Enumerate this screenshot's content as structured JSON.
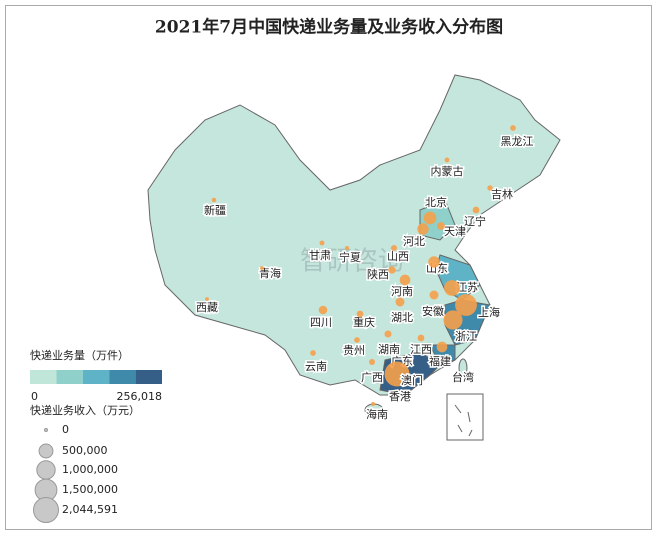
{
  "title": "2021年7月中国快递业务量及业务收入分布图",
  "watermark": "智研咨询",
  "legend": {
    "volume_title": "快递业务量（万件）",
    "volume_range": [
      0,
      {
        "value": 256018,
        "label": "256,018"
      }
    ],
    "volume_colors": [
      "#bfe6d8",
      "#8fd0cb",
      "#5fb3c6",
      "#3f89aa",
      "#355f86"
    ],
    "revenue_title": "快递业务收入（万元）",
    "revenue_sizes": [
      0,
      {
        "value": 500000,
        "label": "500,000"
      },
      {
        "value": 1000000,
        "label": "1,000,000"
      },
      {
        "value": 1500000,
        "label": "1,500,000"
      },
      {
        "value": 2044591,
        "label": "2,044,591"
      }
    ]
  },
  "bubble_color": "#f5a04a",
  "regions": [
    {
      "name": "黑龙江",
      "revenue": 30000
    },
    {
      "name": "吉林",
      "revenue": 25000
    },
    {
      "name": "辽宁",
      "revenue": 60000
    },
    {
      "name": "内蒙古",
      "revenue": 15000
    },
    {
      "name": "北京",
      "revenue": 400000
    },
    {
      "name": "天津",
      "revenue": 100000
    },
    {
      "name": "河北",
      "revenue": 300000
    },
    {
      "name": "山西",
      "revenue": 40000
    },
    {
      "name": "山东",
      "revenue": 300000
    },
    {
      "name": "新疆",
      "revenue": 10000
    },
    {
      "name": "西藏",
      "revenue": 3000
    },
    {
      "name": "青海",
      "revenue": 3000
    },
    {
      "name": "甘肃",
      "revenue": 15000
    },
    {
      "name": "宁夏",
      "revenue": 5000
    },
    {
      "name": "陕西",
      "revenue": 80000
    },
    {
      "name": "河南",
      "revenue": 250000
    },
    {
      "name": "江苏",
      "revenue": 700000
    },
    {
      "name": "上海",
      "revenue": 1500000
    },
    {
      "name": "安徽",
      "revenue": 150000
    },
    {
      "name": "四川",
      "revenue": 130000
    },
    {
      "name": "重庆",
      "revenue": 60000
    },
    {
      "name": "湖北",
      "revenue": 150000
    },
    {
      "name": "浙江",
      "revenue": 1100000
    },
    {
      "name": "湖南",
      "revenue": 70000
    },
    {
      "name": "江西",
      "revenue": 60000
    },
    {
      "name": "贵州",
      "revenue": 30000
    },
    {
      "name": "云南",
      "revenue": 30000
    },
    {
      "name": "福建",
      "revenue": 250000
    },
    {
      "name": "广东",
      "revenue": 2044591
    },
    {
      "name": "广西",
      "revenue": 40000
    },
    {
      "name": "海南",
      "revenue": 5000
    }
  ],
  "other_labels": [
    "台湾",
    "澳门",
    "香港"
  ]
}
